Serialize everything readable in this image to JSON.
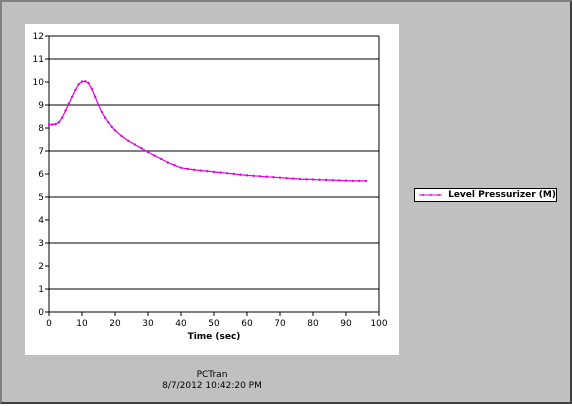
{
  "footer": {
    "line1": "PCTran",
    "line2": "8/7/2012 10:42:20 PM"
  },
  "chart_data": {
    "type": "line",
    "title": "",
    "xlabel": "Time (sec)",
    "ylabel": "",
    "xlim": [
      0,
      100
    ],
    "ylim": [
      0,
      12
    ],
    "xticks": [
      0,
      10,
      20,
      30,
      40,
      50,
      60,
      70,
      80,
      90,
      100
    ],
    "yticks": [
      0,
      1,
      2,
      3,
      4,
      5,
      6,
      7,
      8,
      9,
      10,
      11,
      12
    ],
    "grid": "horizontal",
    "legend_position": "right",
    "series": [
      {
        "name": "Level Pressurizer (M)",
        "color": "#e000e0",
        "x": [
          0,
          1,
          2,
          3,
          4,
          5,
          6,
          7,
          8,
          9,
          10,
          11,
          12,
          13,
          14,
          15,
          16,
          17,
          18,
          19,
          20,
          22,
          24,
          26,
          28,
          30,
          32,
          34,
          36,
          38,
          40,
          42,
          44,
          46,
          48,
          50,
          52,
          54,
          56,
          58,
          60,
          62,
          64,
          66,
          68,
          70,
          72,
          74,
          76,
          78,
          80,
          82,
          84,
          86,
          88,
          90,
          92,
          94,
          96
        ],
        "y": [
          8.15,
          8.15,
          8.17,
          8.25,
          8.45,
          8.75,
          9.05,
          9.35,
          9.65,
          9.9,
          10.02,
          10.03,
          9.95,
          9.7,
          9.35,
          9.0,
          8.7,
          8.45,
          8.25,
          8.05,
          7.9,
          7.65,
          7.45,
          7.28,
          7.12,
          6.95,
          6.8,
          6.65,
          6.5,
          6.38,
          6.27,
          6.22,
          6.18,
          6.15,
          6.12,
          6.09,
          6.06,
          6.03,
          6.0,
          5.97,
          5.94,
          5.92,
          5.9,
          5.88,
          5.86,
          5.84,
          5.82,
          5.8,
          5.78,
          5.77,
          5.76,
          5.75,
          5.74,
          5.73,
          5.72,
          5.71,
          5.7,
          5.7,
          5.7
        ]
      }
    ]
  }
}
